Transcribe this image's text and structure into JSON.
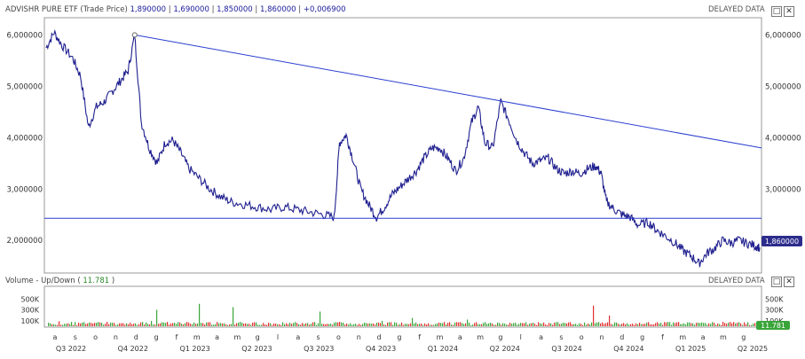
{
  "price_pane": {
    "title": "ADVISHR PURE ETF",
    "subtitle": "(Trade Price)",
    "ohlc": [
      "1,890000",
      "1,690000",
      "1,850000",
      "1,860000",
      "+0,006900"
    ],
    "delayed": "DELAYED DATA",
    "last_price_label": "1,860000"
  },
  "volume_pane": {
    "title": "Volume - Up/Down",
    "value": "11.781",
    "delayed": "DELAYED DATA",
    "last_volume_label": "11.781"
  },
  "window_buttons": {
    "maximize": "□",
    "close": "✕"
  },
  "colors": {
    "price_line": "#1f1f8f",
    "trendline": "#2a3fd0",
    "up_volume": "#3aa53a",
    "down_volume": "#e03030",
    "last_label_bg": "#2c2c8c",
    "volume_label_bg": "#3aa53a"
  },
  "chart_data": {
    "type": "line",
    "x_range": [
      "2022-07",
      "2025-06"
    ],
    "y_ticks": [
      "6,000000",
      "5,000000",
      "4,000000",
      "3,000000",
      "2,000000"
    ],
    "y_tick_values": [
      6,
      5,
      4,
      3,
      2
    ],
    "ylim": [
      1.4,
      6.3
    ],
    "volume_ticks": [
      "500K",
      "300K",
      "100K"
    ],
    "volume_tick_values": [
      500000,
      300000,
      100000
    ],
    "volume_ylim": [
      0,
      700000
    ],
    "month_labels": [
      "a",
      "s",
      "o",
      "n",
      "d",
      "g",
      "f",
      "m",
      "a",
      "m",
      "g",
      "l",
      "a",
      "s",
      "o",
      "n",
      "d",
      "g",
      "f",
      "m",
      "a",
      "m",
      "g",
      "l",
      "a",
      "s",
      "o",
      "n",
      "d",
      "g",
      "f",
      "m",
      "a",
      "m",
      "g"
    ],
    "quarter_labels": [
      "Q3 2022",
      "Q4 2022",
      "Q1 2023",
      "Q2 2023",
      "Q3 2023",
      "Q4 2023",
      "Q1 2024",
      "Q2 2024",
      "Q3 2024",
      "Q4 2024",
      "Q1 2025",
      "Q2 2025"
    ],
    "price_series": [
      [
        0,
        5.75
      ],
      [
        0.3,
        6.05
      ],
      [
        0.6,
        5.8
      ],
      [
        1.0,
        5.55
      ],
      [
        1.3,
        5.2
      ],
      [
        1.6,
        4.2
      ],
      [
        1.9,
        4.6
      ],
      [
        2.2,
        4.7
      ],
      [
        2.5,
        4.9
      ],
      [
        2.8,
        5.1
      ],
      [
        3.1,
        5.3
      ],
      [
        3.35,
        6.0
      ],
      [
        3.6,
        4.3
      ],
      [
        3.9,
        3.8
      ],
      [
        4.2,
        3.5
      ],
      [
        4.5,
        3.9
      ],
      [
        4.8,
        3.95
      ],
      [
        5.1,
        3.7
      ],
      [
        5.4,
        3.4
      ],
      [
        5.8,
        3.2
      ],
      [
        6.2,
        3.0
      ],
      [
        6.6,
        2.85
      ],
      [
        7.0,
        2.75
      ],
      [
        7.5,
        2.7
      ],
      [
        8.0,
        2.65
      ],
      [
        8.5,
        2.6
      ],
      [
        9.0,
        2.65
      ],
      [
        9.5,
        2.6
      ],
      [
        10.0,
        2.55
      ],
      [
        10.5,
        2.5
      ],
      [
        10.9,
        2.45
      ],
      [
        11.1,
        3.9
      ],
      [
        11.35,
        4.05
      ],
      [
        11.6,
        3.6
      ],
      [
        11.9,
        3.0
      ],
      [
        12.2,
        2.7
      ],
      [
        12.5,
        2.45
      ],
      [
        12.8,
        2.65
      ],
      [
        13.1,
        2.9
      ],
      [
        13.4,
        3.05
      ],
      [
        13.7,
        3.2
      ],
      [
        14.0,
        3.35
      ],
      [
        14.3,
        3.6
      ],
      [
        14.6,
        3.8
      ],
      [
        14.9,
        3.8
      ],
      [
        15.2,
        3.6
      ],
      [
        15.5,
        3.35
      ],
      [
        15.8,
        3.6
      ],
      [
        16.1,
        4.3
      ],
      [
        16.35,
        4.6
      ],
      [
        16.6,
        3.9
      ],
      [
        16.9,
        3.8
      ],
      [
        17.2,
        4.7
      ],
      [
        17.5,
        4.35
      ],
      [
        17.8,
        3.95
      ],
      [
        18.1,
        3.7
      ],
      [
        18.4,
        3.5
      ],
      [
        18.7,
        3.55
      ],
      [
        19.0,
        3.6
      ],
      [
        19.3,
        3.4
      ],
      [
        19.6,
        3.3
      ],
      [
        19.9,
        3.35
      ],
      [
        20.2,
        3.3
      ],
      [
        20.5,
        3.4
      ],
      [
        20.8,
        3.45
      ],
      [
        21.0,
        3.3
      ],
      [
        21.2,
        2.75
      ],
      [
        21.5,
        2.6
      ],
      [
        21.8,
        2.5
      ],
      [
        22.1,
        2.45
      ],
      [
        22.4,
        2.3
      ],
      [
        22.8,
        2.35
      ],
      [
        23.1,
        2.2
      ],
      [
        23.4,
        2.1
      ],
      [
        23.8,
        1.95
      ],
      [
        24.1,
        1.8
      ],
      [
        24.4,
        1.7
      ],
      [
        24.7,
        1.55
      ],
      [
        25.0,
        1.75
      ],
      [
        25.3,
        1.85
      ],
      [
        25.6,
        2.0
      ],
      [
        25.9,
        1.95
      ],
      [
        26.2,
        2.0
      ],
      [
        26.5,
        1.95
      ],
      [
        26.8,
        1.9
      ],
      [
        27.0,
        1.86
      ]
    ],
    "horizontal_line": 2.43,
    "trendline": [
      [
        3.35,
        6.0
      ],
      [
        27.0,
        3.8
      ]
    ]
  }
}
